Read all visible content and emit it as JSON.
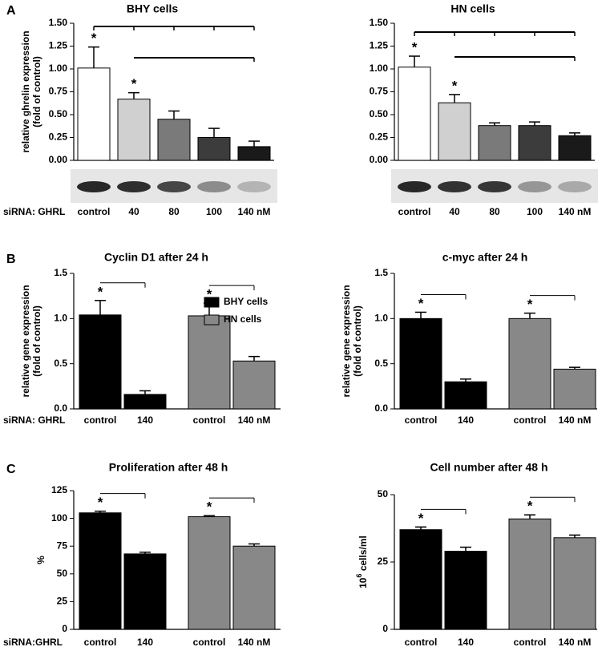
{
  "chart_data": [
    {
      "type": "bar",
      "panel": "A",
      "title": "BHY cells",
      "y_label": [
        "relative ghrelin expression",
        "(fold of control)"
      ],
      "x_prefix": "siRNA: GHRL",
      "categories": [
        "control",
        "40",
        "80",
        "100",
        "140 nM"
      ],
      "values": [
        1.01,
        0.67,
        0.45,
        0.25,
        0.15
      ],
      "errors": [
        0.23,
        0.07,
        0.09,
        0.1,
        0.06
      ],
      "colors": [
        "#ffffff",
        "#d0d0d0",
        "#7a7a7a",
        "#3c3c3c",
        "#1a1a1a"
      ],
      "annotations": [
        "*",
        "*",
        null,
        null,
        null
      ],
      "ylim": [
        0,
        1.5
      ],
      "yticks": [
        {
          "value": 0,
          "label": "0.00"
        },
        {
          "value": 0.25,
          "label": "0.25"
        },
        {
          "value": 0.5,
          "label": "0.50"
        },
        {
          "value": 0.75,
          "label": "0.75"
        },
        {
          "value": 1,
          "label": "1.00"
        },
        {
          "value": 1.25,
          "label": "1.25"
        },
        {
          "value": 1.5,
          "label": "1.50"
        }
      ]
    },
    {
      "type": "bar",
      "title": "HN cells",
      "categories": [
        "control",
        "40",
        "80",
        "100",
        "140 nM"
      ],
      "values": [
        1.02,
        0.63,
        0.38,
        0.38,
        0.27
      ],
      "errors": [
        0.12,
        0.09,
        0.03,
        0.04,
        0.03
      ],
      "colors": [
        "#ffffff",
        "#d0d0d0",
        "#7a7a7a",
        "#3c3c3c",
        "#1a1a1a"
      ],
      "annotations": [
        "*",
        "*",
        null,
        null,
        null
      ],
      "ylim": [
        0,
        1.5
      ],
      "yticks": [
        {
          "value": 0,
          "label": "0.00"
        },
        {
          "value": 0.25,
          "label": "0.25"
        },
        {
          "value": 0.5,
          "label": "0.50"
        },
        {
          "value": 0.75,
          "label": "0.75"
        },
        {
          "value": 1,
          "label": "1.00"
        },
        {
          "value": 1.25,
          "label": "1.25"
        },
        {
          "value": 1.5,
          "label": "1.50"
        }
      ]
    },
    {
      "type": "grouped_bar",
      "panel": "B",
      "title": "Cyclin D1 after 24 h",
      "y_label": [
        "relative gene expression",
        "(fold of control)"
      ],
      "x_prefix": "siRNA: GHRL",
      "categories": [
        "control",
        "140",
        "control",
        "140 nM"
      ],
      "annotations": [
        "*",
        null,
        "*",
        null
      ],
      "legend": "upper right",
      "series": [
        {
          "name": "BHY cells",
          "color": "#000000",
          "values": [
            1.04,
            0.16,
            null,
            null
          ],
          "errors": [
            0.16,
            0.04,
            null,
            null
          ]
        },
        {
          "name": "HN cells",
          "color": "#888888",
          "values": [
            null,
            null,
            1.03,
            0.53
          ],
          "errors": [
            null,
            null,
            0.14,
            0.05
          ]
        }
      ],
      "ylim": [
        0,
        1.5
      ],
      "yticks": [
        {
          "value": 0,
          "label": "0.0"
        },
        0.5,
        {
          "value": 1,
          "label": "1.0"
        },
        1.5
      ]
    },
    {
      "type": "grouped_bar",
      "title": "c-myc after 24 h",
      "y_label": [
        "relative gene expression",
        "(fold of control)"
      ],
      "categories": [
        "control",
        "140",
        "control",
        "140 nM"
      ],
      "annotations": [
        "*",
        null,
        "*",
        null
      ],
      "series": [
        {
          "color": "#000000",
          "values": [
            1.0,
            0.3,
            null,
            null
          ],
          "errors": [
            0.07,
            0.03,
            null,
            null
          ]
        },
        {
          "color": "#888888",
          "values": [
            null,
            null,
            1.0,
            0.44
          ],
          "errors": [
            null,
            null,
            0.06,
            0.02
          ]
        }
      ],
      "ylim": [
        0,
        1.5
      ],
      "yticks": [
        {
          "value": 0,
          "label": "0.0"
        },
        0.5,
        {
          "value": 1,
          "label": "1.0"
        },
        1.5
      ]
    },
    {
      "type": "grouped_bar",
      "panel": "C",
      "title": "Proliferation after 48 h",
      "y_label": [
        "%"
      ],
      "x_prefix": "siRNA:GHRL",
      "categories": [
        "control",
        "140",
        "control",
        "140 nM"
      ],
      "annotations": [
        "*",
        null,
        "*",
        null
      ],
      "series": [
        {
          "color": "#000000",
          "values": [
            105,
            68,
            null,
            null
          ],
          "errors": [
            1.5,
            1.5,
            null,
            null
          ]
        },
        {
          "color": "#888888",
          "values": [
            null,
            null,
            101.5,
            75
          ],
          "errors": [
            null,
            null,
            1,
            2
          ]
        }
      ],
      "ylim": [
        0,
        125
      ],
      "yticks": [
        0,
        25,
        50,
        75,
        100,
        125
      ]
    },
    {
      "type": "grouped_bar",
      "title": "Cell number after 48 h",
      "y_label": {
        "base": "10",
        "sup": "6",
        "rest": " cells/ml"
      },
      "categories": [
        "control",
        "140",
        "control",
        "140 nM"
      ],
      "annotations": [
        "*",
        null,
        "*",
        null
      ],
      "series": [
        {
          "color": "#000000",
          "values": [
            37,
            29,
            null,
            null
          ],
          "errors": [
            1,
            1.5,
            null,
            null
          ]
        },
        {
          "color": "#888888",
          "values": [
            null,
            null,
            41,
            34
          ],
          "errors": [
            null,
            null,
            1.5,
            1
          ]
        }
      ],
      "ylim": [
        0,
        50
      ],
      "yticks": [
        0,
        25,
        50
      ]
    }
  ]
}
